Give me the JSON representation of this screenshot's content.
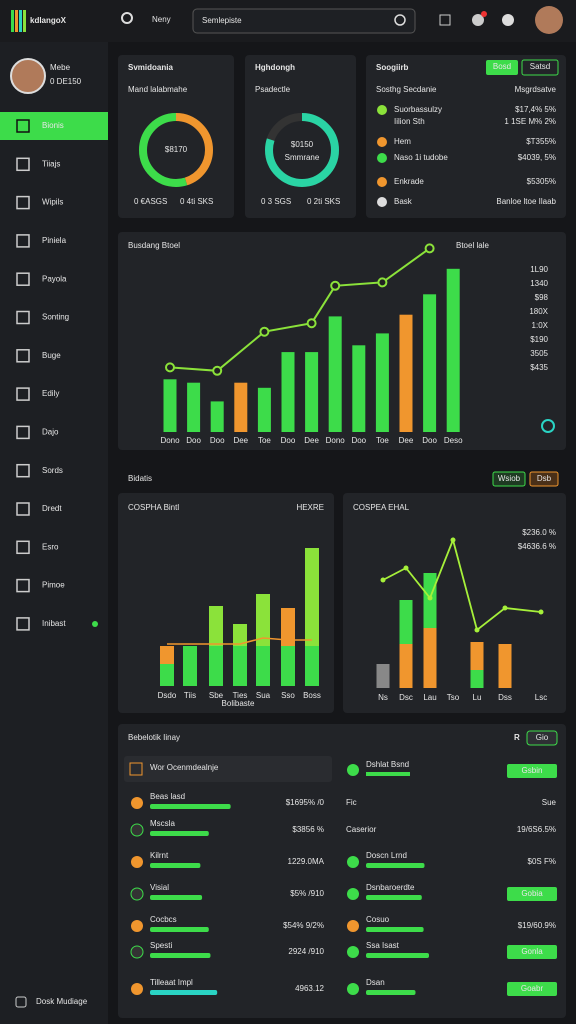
{
  "header": {
    "logo": "kdlangoX",
    "nav": "Neny",
    "search": "Semlepiste"
  },
  "sidebar": {
    "user": {
      "name": "Mebe",
      "amount": "0 DE150"
    },
    "items": [
      "Bionis",
      "Tiiajs",
      "Wipils",
      "Piniela",
      "Payola",
      "Sonting",
      "Buge",
      "Edily",
      "Dajo",
      "Sords",
      "Dredt",
      "Esro",
      "Pimoe",
      "Inibast"
    ],
    "footer": "Dosk Mudiage"
  },
  "cards": [
    {
      "title": "Svmidoania",
      "subtitle": "Mand lalabmahe",
      "center": "$8170",
      "foot": [
        "0 €ASGS",
        "0 4ti SKS"
      ],
      "ring": [
        {
          "value": 45,
          "color": "#f0962e"
        },
        {
          "value": 55,
          "color": "#3ddc4a"
        }
      ]
    },
    {
      "title": "Hghdongh",
      "subtitle": "Psadectle",
      "center": "$0150",
      "center_sub": "Smmrane",
      "foot": [
        "0 3 SGS",
        "0 2ti SKS"
      ],
      "ring": [
        {
          "value": 80,
          "color": "#2ad4a4"
        }
      ]
    }
  ],
  "summary": {
    "title": "Soogiirb",
    "buttons": [
      "Bosd",
      "Satsd"
    ],
    "head": [
      "Sosthg Secdanie",
      "Msgrdsatve"
    ],
    "rows": [
      {
        "label": "Suorbassulzy",
        "sub": "Iilion Sth",
        "value": "$17,4% 5%",
        "sub_value": "1 1SE M% 2%",
        "color": "#8be23a"
      },
      {
        "label": "Hem",
        "value": "$T355%",
        "color": "#f0962e"
      },
      {
        "label": "Naso 1i tudobe",
        "value": "$4039, 5%",
        "color": "#3ddc4a"
      },
      {
        "label": "Enkrade",
        "value": "$5305%",
        "color": "#f0962e"
      },
      {
        "label": "Bask",
        "value": "Banloe ltoe Ilaab",
        "color": "#dddddd"
      }
    ]
  },
  "main_chart": {
    "title": "Busdang Btoel",
    "legend": "Btoel lale",
    "ylim": [
      0,
      110
    ],
    "right_labels": [
      "1L90",
      "1340",
      "$98",
      "180X",
      "1:0X",
      "$190",
      "3505",
      "$435"
    ],
    "categories": [
      "Dono",
      "Doo",
      "Doo",
      "Dee",
      "Toe",
      "Doo",
      "Dee",
      "Dono",
      "Doo",
      "Toe",
      "Dee",
      "Doo",
      "Deso"
    ],
    "bars": {
      "values": [
        31,
        29,
        18,
        29,
        26,
        47,
        47,
        68,
        51,
        58,
        69,
        81,
        96
      ],
      "colors": [
        "#3ddc4a",
        "#3ddc4a",
        "#3ddc4a",
        "#f0962e",
        "#3ddc4a",
        "#3ddc4a",
        "#3ddc4a",
        "#3ddc4a",
        "#3ddc4a",
        "#3ddc4a",
        "#f0962e",
        "#3ddc4a",
        "#3ddc4a"
      ]
    },
    "line": {
      "x": [
        0,
        2,
        4,
        6,
        7,
        9,
        11
      ],
      "values": [
        38,
        36,
        59,
        64,
        86,
        88,
        108
      ],
      "color": "#8be23a"
    }
  },
  "section": {
    "title": "Bidatis",
    "buttons": [
      "Wsiob",
      "Dsb"
    ],
    "left": {
      "title": "COSPHA Bintl",
      "right": "HEXRE",
      "categories": [
        "Dsdo",
        "Tiis",
        "Sbe",
        "Ties",
        "Sua",
        "Sso",
        "Boss"
      ],
      "x_title": "Bolibaste",
      "stacks": [
        [
          {
            "value": 22,
            "color": "#3ddc4a"
          },
          {
            "value": 18,
            "color": "#f0962e"
          }
        ],
        [
          {
            "value": 40,
            "color": "#3ddc4a"
          }
        ],
        [
          {
            "value": 40,
            "color": "#3ddc4a"
          },
          {
            "value": 40,
            "color": "#8be23a"
          }
        ],
        [
          {
            "value": 40,
            "color": "#3ddc4a"
          },
          {
            "value": 22,
            "color": "#8be23a"
          }
        ],
        [
          {
            "value": 40,
            "color": "#3ddc4a"
          },
          {
            "value": 52,
            "color": "#8be23a"
          }
        ],
        [
          {
            "value": 40,
            "color": "#3ddc4a"
          },
          {
            "value": 38,
            "color": "#f0962e"
          }
        ],
        [
          {
            "value": 40,
            "color": "#3ddc4a"
          },
          {
            "value": 98,
            "color": "#8be23a"
          }
        ]
      ],
      "line": [
        42,
        42,
        42,
        42,
        48,
        46,
        46
      ]
    },
    "right": {
      "title": "COSPEA EHAL",
      "values_text": [
        "$236.0 %",
        "$4636.6 %"
      ],
      "categories": [
        "Ns",
        "Dsc",
        "Lau",
        "Tso",
        "Lu",
        "Dss",
        "Lsc"
      ],
      "stacks": [
        [
          {
            "value": 24,
            "color": "#888888"
          }
        ],
        [
          {
            "value": 44,
            "color": "#f0962e"
          },
          {
            "value": 44,
            "color": "#3ddc4a"
          }
        ],
        [
          {
            "value": 60,
            "color": "#f0962e"
          },
          {
            "value": 55,
            "color": "#3ddc4a"
          }
        ],
        [],
        [
          {
            "value": 18,
            "color": "#3ddc4a"
          },
          {
            "value": 28,
            "color": "#f0962e"
          }
        ],
        [
          {
            "value": 44,
            "color": "#f0962e"
          }
        ],
        []
      ],
      "line": [
        108,
        120,
        90,
        148,
        58,
        80,
        76
      ]
    }
  },
  "list": {
    "title": "Bebelotik Iinay",
    "mark": "R",
    "button": "Gio",
    "left": {
      "header": "Wor Ocenmdealnje",
      "rows": [
        {
          "label": "Beas lasd",
          "value": "$1695% /0",
          "bar": 96
        },
        {
          "label": "Mscsla",
          "value": "$3856 %",
          "bar": 70
        },
        {
          "label": "Kilrnt",
          "value": "1229.0MA",
          "bar": 60
        },
        {
          "label": "Visial",
          "value": "$5% /910",
          "bar": 62
        },
        {
          "label": "Cocbcs",
          "value": "$54% 9/2%",
          "bar": 70
        },
        {
          "label": "Spesti",
          "value": "2924 /910",
          "bar": 72
        },
        {
          "label": "Tilleaat Impl",
          "value": "4963.12",
          "bar": 80
        }
      ]
    },
    "right": {
      "header": "Dshlat Bsnd",
      "button": "Gsbin",
      "sub": [
        "Fic",
        "Sue"
      ],
      "caption": [
        "Caserior",
        "19/6S6.5%"
      ],
      "rows": [
        {
          "label": "Doscn Lrnd",
          "value": "$0S F%",
          "bar": 65
        },
        {
          "label": "Dsnbaroerdte",
          "button": "Gobia",
          "bar": 62
        },
        {
          "label": "Cosuo",
          "value": "$19/60.9%",
          "bar": 64
        },
        {
          "label": "Ssa Isast",
          "button": "Gonla",
          "bar": 70
        },
        {
          "label": "Dsan",
          "button": "Goabr",
          "bar": 55
        }
      ]
    }
  }
}
